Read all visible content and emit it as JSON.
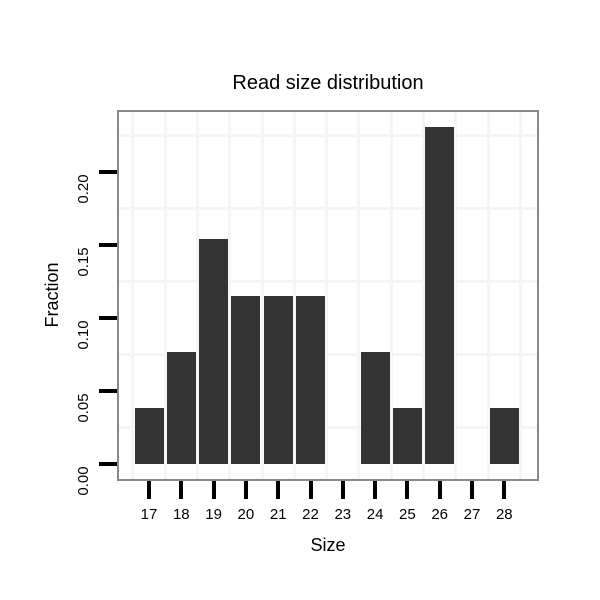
{
  "chart_data": {
    "type": "bar",
    "title": "Read size distribution",
    "xlabel": "Size",
    "ylabel": "Fraction",
    "categories": [
      17,
      18,
      19,
      20,
      21,
      22,
      23,
      24,
      25,
      26,
      27,
      28
    ],
    "values": [
      0.0385,
      0.0769,
      0.1538,
      0.1154,
      0.1154,
      0.1154,
      0,
      0.0769,
      0.0385,
      0.2308,
      0,
      0.0385
    ],
    "ytick_labels": [
      "0.00",
      "0.05",
      "0.10",
      "0.15",
      "0.20"
    ],
    "ytick_values": [
      0,
      0.05,
      0.1,
      0.15,
      0.2
    ],
    "minor_grid_y": [
      0.025,
      0.075,
      0.125,
      0.175,
      0.225
    ],
    "ylim": [
      -0.0115,
      0.2423
    ],
    "legend": "none",
    "grid": "light minor gridlines on white panel",
    "colors": {
      "bar_fill": "#333333",
      "panel_border": "#888888",
      "gridline": "#f5f5f5",
      "tick": "#000000",
      "text": "#000000",
      "background": "#ffffff"
    }
  }
}
